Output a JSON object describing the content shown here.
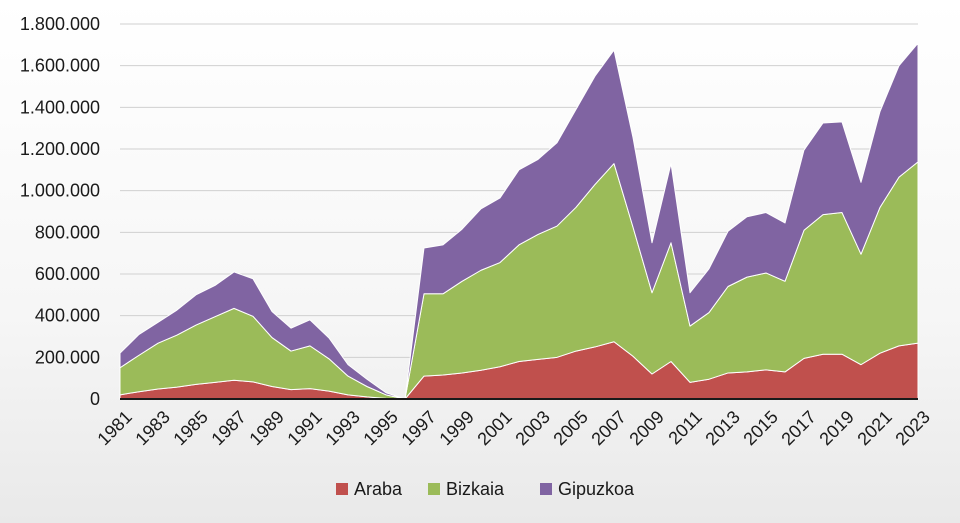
{
  "chart_data": {
    "type": "area",
    "stacked": true,
    "title": "",
    "xlabel": "",
    "ylabel": "",
    "ylim": [
      0,
      1800000
    ],
    "yticks": [
      0,
      200000,
      400000,
      600000,
      800000,
      1000000,
      1200000,
      1400000,
      1600000,
      1800000
    ],
    "ytick_labels": [
      "0",
      "200.000",
      "400.000",
      "600.000",
      "800.000",
      "1.000.000",
      "1.200.000",
      "1.400.000",
      "1.600.000",
      "1.800.000"
    ],
    "x": [
      1981,
      1982,
      1983,
      1984,
      1985,
      1986,
      1987,
      1988,
      1989,
      1990,
      1991,
      1992,
      1993,
      1994,
      1995,
      1996,
      1997,
      1998,
      1999,
      2000,
      2001,
      2002,
      2003,
      2004,
      2005,
      2006,
      2007,
      2008,
      2009,
      2010,
      2011,
      2012,
      2013,
      2014,
      2015,
      2016,
      2017,
      2018,
      2019,
      2020,
      2021,
      2022,
      2023
    ],
    "xtick_labels": [
      "1981",
      "1983",
      "1985",
      "1987",
      "1989",
      "1991",
      "1993",
      "1995",
      "1997",
      "1999",
      "2001",
      "2003",
      "2005",
      "2007",
      "2009",
      "2011",
      "2013",
      "2015",
      "2017",
      "2019",
      "2021",
      "2023"
    ],
    "grid": true,
    "legend_position": "bottom",
    "series": [
      {
        "name": "Araba",
        "color": "#c0504d",
        "values": [
          20000,
          35000,
          48000,
          57000,
          70000,
          80000,
          90000,
          82000,
          60000,
          45000,
          50000,
          38000,
          20000,
          10000,
          3000,
          0,
          110000,
          115000,
          125000,
          138000,
          155000,
          180000,
          190000,
          200000,
          230000,
          250000,
          275000,
          205000,
          120000,
          180000,
          80000,
          95000,
          125000,
          130000,
          140000,
          130000,
          195000,
          215000,
          215000,
          165000,
          220000,
          255000,
          268000
        ]
      },
      {
        "name": "Bizkaia",
        "color": "#9bbb59",
        "values": [
          130000,
          175000,
          220000,
          250000,
          285000,
          315000,
          345000,
          315000,
          235000,
          185000,
          205000,
          155000,
          90000,
          50000,
          17000,
          0,
          395000,
          390000,
          440000,
          480000,
          500000,
          560000,
          600000,
          630000,
          690000,
          780000,
          855000,
          620000,
          390000,
          570000,
          270000,
          320000,
          415000,
          455000,
          465000,
          435000,
          615000,
          670000,
          680000,
          530000,
          700000,
          810000,
          870000
        ]
      },
      {
        "name": "Gipuzkoa",
        "color": "#8064a2",
        "values": [
          70000,
          100000,
          100000,
          120000,
          145000,
          150000,
          175000,
          180000,
          125000,
          110000,
          125000,
          100000,
          55000,
          35000,
          10000,
          0,
          220000,
          235000,
          250000,
          295000,
          310000,
          360000,
          360000,
          400000,
          470000,
          520000,
          545000,
          430000,
          240000,
          380000,
          160000,
          210000,
          265000,
          290000,
          290000,
          280000,
          385000,
          440000,
          435000,
          345000,
          460000,
          535000,
          570000
        ]
      }
    ]
  }
}
